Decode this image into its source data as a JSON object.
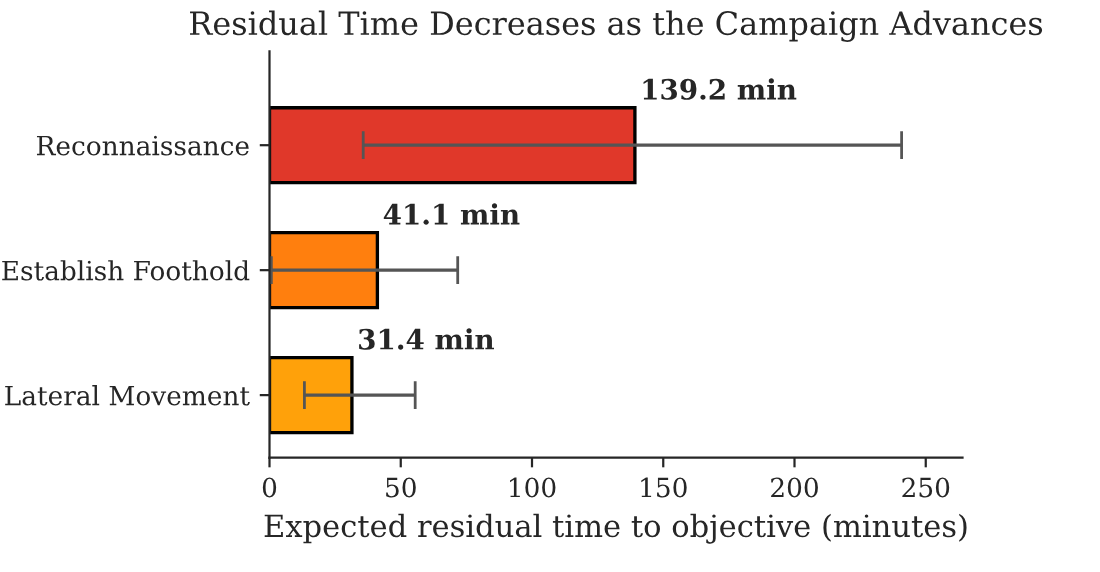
{
  "chart_data": {
    "type": "bar",
    "orientation": "horizontal",
    "title": "Residual Time Decreases as the Campaign Advances",
    "xlabel": "Expected residual time to objective (minutes)",
    "categories": [
      "Reconnaissance",
      "Establish Foothold",
      "Lateral Movement"
    ],
    "values": [
      139.2,
      41.1,
      31.4
    ],
    "colors": [
      "#e0382a",
      "#ff7f0e",
      "#ffa10a"
    ],
    "errors": [
      [
        35.7,
        240.8
      ],
      [
        0.7,
        71.7
      ],
      [
        13.3,
        55.5
      ]
    ],
    "value_labels": [
      "139.2 min",
      "41.1 min",
      "31.4 min"
    ],
    "xlim": [
      0,
      264
    ],
    "xticks": [
      0,
      50,
      100,
      150,
      200,
      250
    ],
    "grid": false
  }
}
